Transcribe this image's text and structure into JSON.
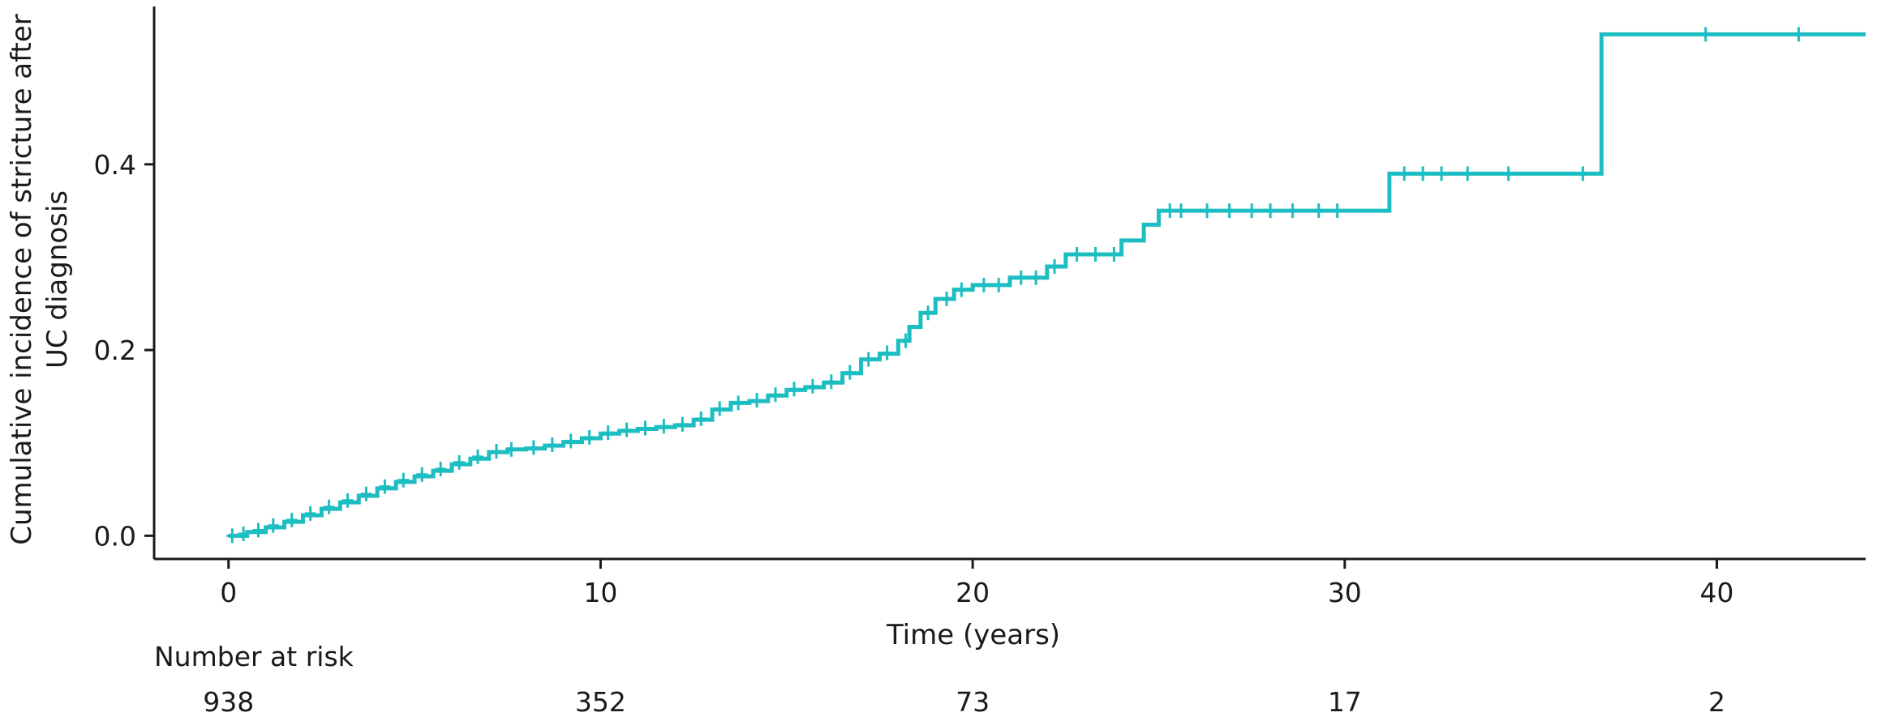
{
  "chart_data": {
    "type": "line",
    "title": "",
    "xlabel": "Time (years)",
    "ylabel_lines": [
      "Cumulative incidence of stricture after",
      "UC diagnosis"
    ],
    "xlim": [
      -2,
      44
    ],
    "ylim": [
      -0.025,
      0.57
    ],
    "x_ticks": [
      0,
      10,
      20,
      30,
      40
    ],
    "x_tick_labels": [
      "0",
      "10",
      "20",
      "30",
      "40"
    ],
    "y_ticks": [
      0.0,
      0.2,
      0.4
    ],
    "y_tick_labels": [
      "0.0",
      "0.2",
      "0.4"
    ],
    "grid": false,
    "line_color": "#1dbec2",
    "series": [
      {
        "step_points": [
          [
            0,
            0.0
          ],
          [
            0.5,
            0.004
          ],
          [
            1,
            0.009
          ],
          [
            1.5,
            0.015
          ],
          [
            2,
            0.022
          ],
          [
            2.5,
            0.029
          ],
          [
            3,
            0.036
          ],
          [
            3.5,
            0.043
          ],
          [
            4,
            0.051
          ],
          [
            4.5,
            0.058
          ],
          [
            5,
            0.064
          ],
          [
            5.5,
            0.07
          ],
          [
            6,
            0.077
          ],
          [
            6.5,
            0.083
          ],
          [
            7,
            0.09
          ],
          [
            7.5,
            0.093
          ],
          [
            8,
            0.094
          ],
          [
            8.5,
            0.097
          ],
          [
            9,
            0.101
          ],
          [
            9.5,
            0.105
          ],
          [
            10,
            0.11
          ],
          [
            10.5,
            0.113
          ],
          [
            11,
            0.115
          ],
          [
            11.5,
            0.117
          ],
          [
            12,
            0.119
          ],
          [
            12.5,
            0.125
          ],
          [
            13,
            0.136
          ],
          [
            13.5,
            0.143
          ],
          [
            14,
            0.145
          ],
          [
            14.5,
            0.151
          ],
          [
            15,
            0.157
          ],
          [
            15.5,
            0.16
          ],
          [
            16,
            0.165
          ],
          [
            16.5,
            0.175
          ],
          [
            17,
            0.19
          ],
          [
            17.5,
            0.196
          ],
          [
            18,
            0.21
          ],
          [
            18.3,
            0.225
          ],
          [
            18.6,
            0.24
          ],
          [
            19,
            0.255
          ],
          [
            19.5,
            0.265
          ],
          [
            20,
            0.27
          ],
          [
            21,
            0.278
          ],
          [
            22,
            0.29
          ],
          [
            22.5,
            0.303
          ],
          [
            24,
            0.318
          ],
          [
            24.6,
            0.335
          ],
          [
            25,
            0.35
          ],
          [
            31.2,
            0.39
          ],
          [
            36.9,
            0.54
          ]
        ],
        "end_x": 44,
        "censor_marks": [
          [
            0.1,
            0.0
          ],
          [
            0.4,
            0.002
          ],
          [
            0.8,
            0.006
          ],
          [
            1.2,
            0.011
          ],
          [
            1.7,
            0.017
          ],
          [
            2.2,
            0.024
          ],
          [
            2.7,
            0.031
          ],
          [
            3.2,
            0.038
          ],
          [
            3.7,
            0.045
          ],
          [
            4.2,
            0.053
          ],
          [
            4.7,
            0.06
          ],
          [
            5.2,
            0.066
          ],
          [
            5.7,
            0.072
          ],
          [
            6.2,
            0.079
          ],
          [
            6.7,
            0.085
          ],
          [
            7.2,
            0.091
          ],
          [
            7.6,
            0.093
          ],
          [
            8.2,
            0.095
          ],
          [
            8.7,
            0.098
          ],
          [
            9.2,
            0.102
          ],
          [
            9.7,
            0.106
          ],
          [
            10.2,
            0.111
          ],
          [
            10.7,
            0.114
          ],
          [
            11.2,
            0.116
          ],
          [
            11.7,
            0.118
          ],
          [
            12.2,
            0.12
          ],
          [
            12.7,
            0.126
          ],
          [
            13.2,
            0.137
          ],
          [
            13.7,
            0.143
          ],
          [
            14.2,
            0.146
          ],
          [
            14.7,
            0.152
          ],
          [
            15.2,
            0.158
          ],
          [
            15.7,
            0.161
          ],
          [
            16.2,
            0.166
          ],
          [
            16.7,
            0.176
          ],
          [
            17.2,
            0.19
          ],
          [
            17.7,
            0.197
          ],
          [
            18.2,
            0.21
          ],
          [
            18.8,
            0.24
          ],
          [
            19.3,
            0.255
          ],
          [
            19.7,
            0.265
          ],
          [
            20.3,
            0.27
          ],
          [
            20.7,
            0.27
          ],
          [
            21.3,
            0.278
          ],
          [
            21.7,
            0.278
          ],
          [
            22.2,
            0.29
          ],
          [
            22.8,
            0.303
          ],
          [
            23.3,
            0.303
          ],
          [
            23.8,
            0.303
          ],
          [
            25.3,
            0.35
          ],
          [
            25.6,
            0.35
          ],
          [
            26.3,
            0.35
          ],
          [
            26.9,
            0.35
          ],
          [
            27.5,
            0.35
          ],
          [
            28.0,
            0.35
          ],
          [
            28.6,
            0.35
          ],
          [
            29.3,
            0.35
          ],
          [
            29.8,
            0.35
          ],
          [
            31.6,
            0.39
          ],
          [
            32.1,
            0.39
          ],
          [
            32.6,
            0.39
          ],
          [
            33.3,
            0.39
          ],
          [
            34.4,
            0.39
          ],
          [
            36.4,
            0.39
          ],
          [
            39.7,
            0.54
          ],
          [
            42.2,
            0.54
          ]
        ]
      }
    ],
    "risk_table": {
      "title": "Number at risk",
      "times": [
        0,
        10,
        20,
        30,
        40
      ],
      "counts": [
        "938",
        "352",
        "73",
        "17",
        "2"
      ]
    }
  }
}
